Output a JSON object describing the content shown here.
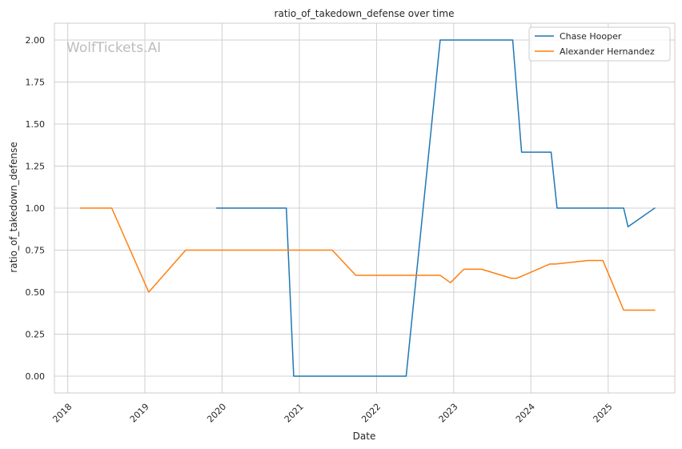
{
  "chart_data": {
    "type": "line",
    "title": "ratio_of_takedown_defense over time",
    "xlabel": "Date",
    "ylabel": "ratio_of_takedown_defense",
    "watermark": "WolfTickets.AI",
    "x_ticks": [
      "2018",
      "2019",
      "2020",
      "2021",
      "2022",
      "2023",
      "2024",
      "2025"
    ],
    "y_ticks": [
      "0.00",
      "0.25",
      "0.50",
      "0.75",
      "1.00",
      "1.25",
      "1.50",
      "1.75",
      "2.00"
    ],
    "ylim": [
      -0.1,
      2.1
    ],
    "xlim": [
      "2017-10-30",
      "2025-11-12"
    ],
    "grid": true,
    "legend_position": "top-right",
    "colors": {
      "Chase Hooper": "#1f77b4",
      "Alexander Hernandez": "#ff7f0e",
      "grid": "#d0d0d0",
      "axes": "#cccccc"
    },
    "series": [
      {
        "name": "Chase Hooper",
        "color": "#1f77b4",
        "points": [
          [
            "2019-12-07",
            1.0
          ],
          [
            "2020-10-31",
            1.0
          ],
          [
            "2020-12-05",
            0.0
          ],
          [
            "2022-05-21",
            0.0
          ],
          [
            "2022-10-29",
            2.0
          ],
          [
            "2023-10-07",
            2.0
          ],
          [
            "2023-11-18",
            1.333
          ],
          [
            "2024-04-06",
            1.333
          ],
          [
            "2024-05-04",
            1.0
          ],
          [
            "2025-03-15",
            1.0
          ],
          [
            "2025-04-05",
            0.889
          ],
          [
            "2025-08-09",
            1.0
          ]
        ]
      },
      {
        "name": "Alexander Hernandez",
        "color": "#ff7f0e",
        "points": [
          [
            "2018-03-03",
            1.0
          ],
          [
            "2018-07-28",
            1.0
          ],
          [
            "2019-01-19",
            0.5
          ],
          [
            "2019-07-13",
            0.75
          ],
          [
            "2021-06-05",
            0.75
          ],
          [
            "2021-09-25",
            0.6
          ],
          [
            "2022-10-29",
            0.6
          ],
          [
            "2022-12-17",
            0.556
          ],
          [
            "2023-02-18",
            0.636
          ],
          [
            "2023-05-13",
            0.636
          ],
          [
            "2023-09-30",
            0.583
          ],
          [
            "2023-10-28",
            0.583
          ],
          [
            "2024-03-30",
            0.667
          ],
          [
            "2024-04-27",
            0.667
          ],
          [
            "2024-09-28",
            0.688
          ],
          [
            "2024-12-07",
            0.688
          ],
          [
            "2025-03-15",
            0.393
          ],
          [
            "2025-08-09",
            0.393
          ]
        ]
      }
    ]
  }
}
